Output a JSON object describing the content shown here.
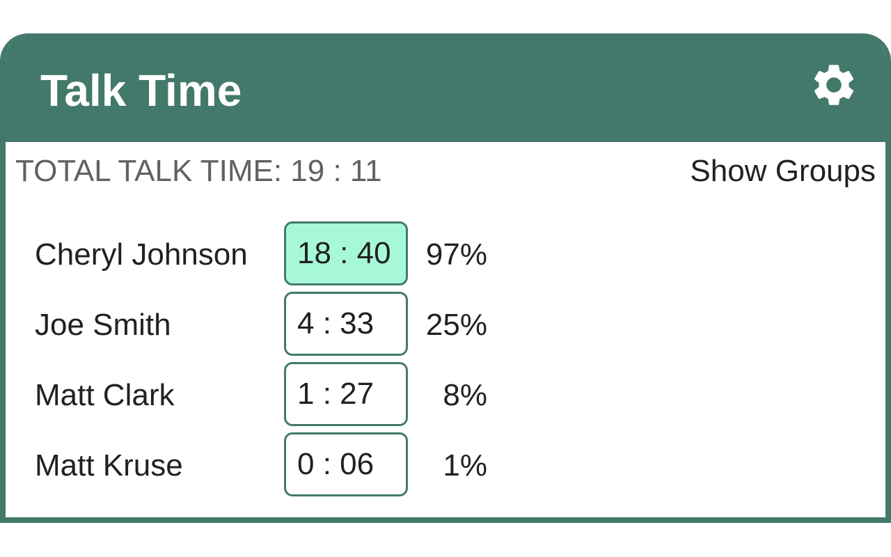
{
  "header": {
    "title": "Talk Time",
    "settings_icon": "gear-icon",
    "color": "#43796b"
  },
  "summary": {
    "total_label": "TOTAL TALK TIME: 19 : 11",
    "show_groups_label": "Show Groups"
  },
  "speakers": [
    {
      "name": "Cheryl Johnson",
      "time": "18 : 40",
      "percent": "97%",
      "active": true
    },
    {
      "name": "Joe Smith",
      "time": "4 : 33",
      "percent": "25%",
      "active": false
    },
    {
      "name": "Matt Clark",
      "time": "1 : 27",
      "percent": "8%",
      "active": false
    },
    {
      "name": "Matt Kruse",
      "time": "0 : 06",
      "percent": "1%",
      "active": false
    }
  ],
  "colors": {
    "accent": "#43796b",
    "active_highlight": "#a7f8d9"
  }
}
